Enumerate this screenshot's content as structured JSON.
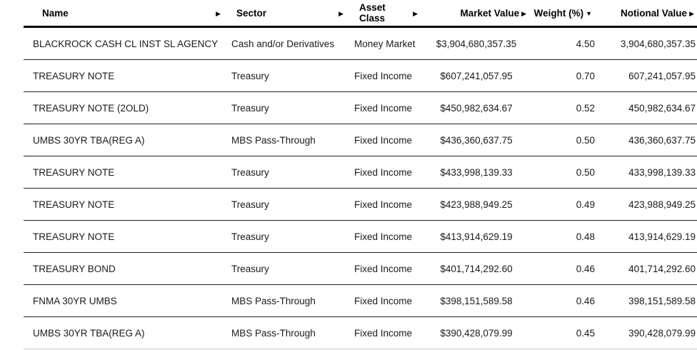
{
  "table": {
    "columns": [
      {
        "key": "name",
        "label": "Name",
        "sort_glyph": "▶",
        "align": "left"
      },
      {
        "key": "sector",
        "label": "Sector",
        "sort_glyph": "▶",
        "align": "left"
      },
      {
        "key": "asset_class",
        "label": "Asset Class",
        "sort_glyph": "▶",
        "align": "left"
      },
      {
        "key": "market_value",
        "label": "Market Value",
        "sort_glyph": "▶",
        "align": "center"
      },
      {
        "key": "weight",
        "label": "Weight (%)",
        "sort_glyph": "▼",
        "align": "right"
      },
      {
        "key": "notional_value",
        "label": "Notional Value",
        "sort_glyph": "▶",
        "align": "right"
      }
    ],
    "rows": [
      {
        "name": "BLACKROCK CASH CL INST SL AGENCY",
        "sector": "Cash and/or Derivatives",
        "asset_class": "Money Market",
        "market_value": "$3,904,680,357.35",
        "weight": "4.50",
        "notional_value": "3,904,680,357.35"
      },
      {
        "name": "TREASURY NOTE",
        "sector": "Treasury",
        "asset_class": "Fixed Income",
        "market_value": "$607,241,057.95",
        "weight": "0.70",
        "notional_value": "607,241,057.95"
      },
      {
        "name": "TREASURY NOTE (2OLD)",
        "sector": "Treasury",
        "asset_class": "Fixed Income",
        "market_value": "$450,982,634.67",
        "weight": "0.52",
        "notional_value": "450,982,634.67"
      },
      {
        "name": "UMBS 30YR TBA(REG A)",
        "sector": "MBS Pass-Through",
        "asset_class": "Fixed Income",
        "market_value": "$436,360,637.75",
        "weight": "0.50",
        "notional_value": "436,360,637.75"
      },
      {
        "name": "TREASURY NOTE",
        "sector": "Treasury",
        "asset_class": "Fixed Income",
        "market_value": "$433,998,139.33",
        "weight": "0.50",
        "notional_value": "433,998,139.33"
      },
      {
        "name": "TREASURY NOTE",
        "sector": "Treasury",
        "asset_class": "Fixed Income",
        "market_value": "$423,988,949.25",
        "weight": "0.49",
        "notional_value": "423,988,949.25"
      },
      {
        "name": "TREASURY NOTE",
        "sector": "Treasury",
        "asset_class": "Fixed Income",
        "market_value": "$413,914,629.19",
        "weight": "0.48",
        "notional_value": "413,914,629.19"
      },
      {
        "name": "TREASURY BOND",
        "sector": "Treasury",
        "asset_class": "Fixed Income",
        "market_value": "$401,714,292.60",
        "weight": "0.46",
        "notional_value": "401,714,292.60"
      },
      {
        "name": "FNMA 30YR UMBS",
        "sector": "MBS Pass-Through",
        "asset_class": "Fixed Income",
        "market_value": "$398,151,589.58",
        "weight": "0.46",
        "notional_value": "398,151,589.58"
      },
      {
        "name": "UMBS 30YR TBA(REG A)",
        "sector": "MBS Pass-Through",
        "asset_class": "Fixed Income",
        "market_value": "$390,428,079.99",
        "weight": "0.45",
        "notional_value": "390,428,079.99"
      }
    ]
  },
  "colors": {
    "background": "#ffffff",
    "text": "#1a1a1a",
    "header_text": "#000000",
    "header_divider": "#000000",
    "row_divider": "#1f1f1f",
    "last_row_divider": "#c9c9c9"
  }
}
